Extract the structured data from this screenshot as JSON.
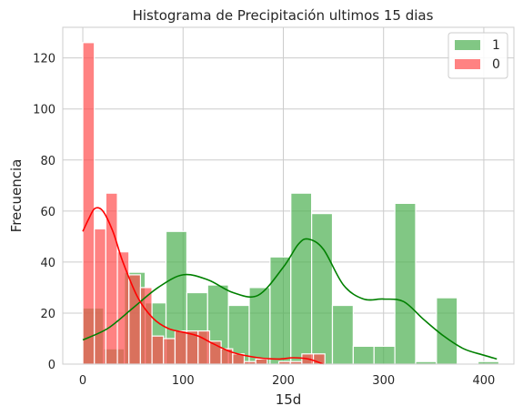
{
  "chart_data": {
    "type": "histogram",
    "title": "Histograma de Precipitación ultimos 15 dias",
    "xlabel": "15d",
    "ylabel": "Frecuencia",
    "xlim": [
      -20,
      430
    ],
    "ylim": [
      0,
      132
    ],
    "xticks": [
      0,
      100,
      200,
      300,
      400
    ],
    "yticks": [
      0,
      20,
      40,
      60,
      80,
      100,
      120
    ],
    "grid": true,
    "legend_position": "top-right",
    "series": [
      {
        "name": "1",
        "color": "#4caf50",
        "kde_color": "#008000",
        "bin_start": 0,
        "bin_width": 20.75,
        "counts": [
          22,
          6,
          36,
          24,
          52,
          28,
          31,
          23,
          30,
          42,
          67,
          59,
          23,
          7,
          7,
          63,
          1,
          26,
          0,
          1
        ],
        "kde": [
          [
            0,
            9.5
          ],
          [
            25,
            14
          ],
          [
            50,
            22
          ],
          [
            75,
            30
          ],
          [
            100,
            35
          ],
          [
            125,
            33
          ],
          [
            150,
            28
          ],
          [
            175,
            27
          ],
          [
            200,
            38
          ],
          [
            215,
            47
          ],
          [
            225,
            49
          ],
          [
            240,
            45
          ],
          [
            260,
            31
          ],
          [
            280,
            25.5
          ],
          [
            300,
            25.5
          ],
          [
            320,
            24.5
          ],
          [
            340,
            17.5
          ],
          [
            360,
            11
          ],
          [
            380,
            6
          ],
          [
            400,
            3.5
          ],
          [
            413,
            2
          ]
        ]
      },
      {
        "name": "0",
        "color": "#ff4d4d",
        "kde_color": "#ff0000",
        "bin_start": 0,
        "bin_width": 11.5,
        "counts": [
          126,
          53,
          67,
          44,
          35,
          30,
          11,
          10,
          13,
          13,
          13,
          9,
          6,
          4,
          1,
          2,
          0,
          1,
          1,
          4,
          4
        ],
        "kde": [
          [
            0,
            52
          ],
          [
            6,
            57
          ],
          [
            12,
            61
          ],
          [
            20,
            60
          ],
          [
            30,
            52
          ],
          [
            40,
            40
          ],
          [
            55,
            26
          ],
          [
            70,
            18
          ],
          [
            85,
            14
          ],
          [
            100,
            12.5
          ],
          [
            115,
            11
          ],
          [
            130,
            8
          ],
          [
            150,
            4.5
          ],
          [
            175,
            2.5
          ],
          [
            195,
            2
          ],
          [
            210,
            2.5
          ],
          [
            225,
            2
          ],
          [
            240,
            0
          ]
        ]
      }
    ]
  }
}
